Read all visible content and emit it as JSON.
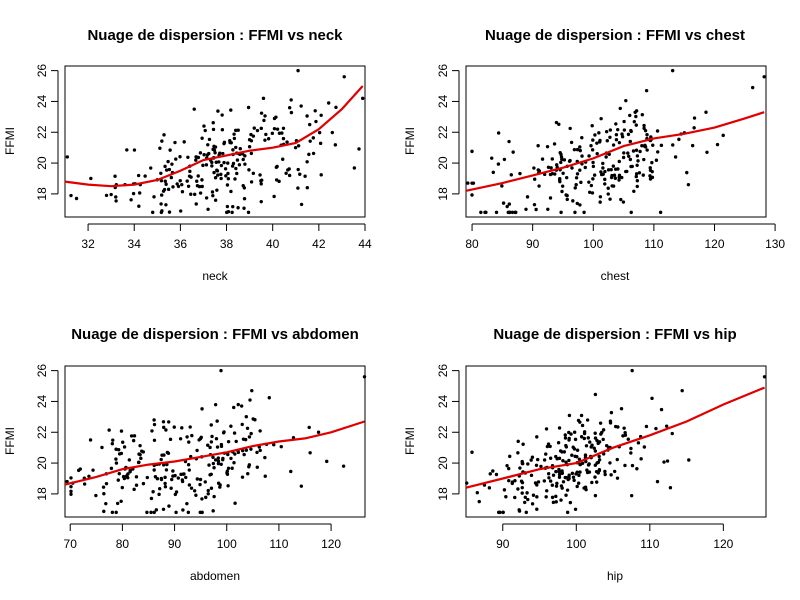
{
  "colors": {
    "points": "#000000",
    "smoother": "#e00000",
    "background": "#ffffff"
  },
  "chart_data": [
    {
      "type": "scatter",
      "title": "Nuage de dispersion : FFMI vs neck",
      "xlabel": "neck",
      "ylabel": "FFMI",
      "xlim": [
        31,
        44
      ],
      "ylim": [
        16.5,
        26.3
      ],
      "xticks": [
        32,
        34,
        36,
        38,
        40,
        42,
        44
      ],
      "yticks": [
        18,
        20,
        22,
        24,
        26
      ],
      "x_center": 37.9,
      "x_spread": 2.3,
      "y_slope": 0.34,
      "y_noise": 1.45,
      "points": [
        [
          31.1,
          20.4
        ],
        [
          31.5,
          17.7
        ],
        [
          32.8,
          17.9
        ],
        [
          33.2,
          17.8
        ],
        [
          33.6,
          18.6
        ],
        [
          34.2,
          17.2
        ],
        [
          34.8,
          16.8
        ],
        [
          35.2,
          16.9
        ],
        [
          41.1,
          26.0
        ],
        [
          43.1,
          25.6
        ],
        [
          43.9,
          24.2
        ],
        [
          39.6,
          24.2
        ],
        [
          42.1,
          23.1
        ],
        [
          41.5,
          18.4
        ],
        [
          37.2,
          17.0
        ],
        [
          38.5,
          17.1
        ],
        [
          36.6,
          23.5
        ],
        [
          40.8,
          24.1
        ]
      ],
      "smoother": {
        "name": "",
        "x": [
          31.0,
          32.0,
          33.0,
          34.0,
          35.0,
          36.0,
          37.0,
          38.0,
          39.0,
          40.0,
          41.0,
          42.0,
          43.0,
          43.9
        ],
        "y": [
          18.8,
          18.6,
          18.5,
          18.6,
          18.9,
          19.5,
          20.2,
          20.5,
          20.8,
          21.0,
          21.3,
          22.2,
          23.5,
          25.0
        ]
      }
    },
    {
      "type": "scatter",
      "title": "Nuage de dispersion : FFMI vs chest",
      "xlabel": "chest",
      "ylabel": "FFMI",
      "xlim": [
        79,
        128.5
      ],
      "ylim": [
        16.5,
        26.3
      ],
      "xticks": [
        80,
        90,
        100,
        110,
        120,
        130
      ],
      "yticks": [
        18,
        20,
        22,
        24,
        26
      ],
      "x_center": 100.5,
      "x_spread": 8.5,
      "y_slope": 0.09,
      "y_noise": 1.5,
      "points": [
        [
          79.3,
          18.7
        ],
        [
          83.5,
          19.4
        ],
        [
          85.2,
          17.4
        ],
        [
          88.9,
          17.0
        ],
        [
          113.1,
          26.0
        ],
        [
          128.2,
          25.6
        ],
        [
          120.5,
          21.2
        ],
        [
          115.7,
          18.6
        ],
        [
          118.6,
          23.3
        ],
        [
          108.8,
          24.7
        ],
        [
          90.3,
          17.3
        ],
        [
          92.5,
          17.0
        ]
      ],
      "smoother": {
        "name": "",
        "x": [
          79.0,
          85.0,
          90.0,
          95.0,
          100.0,
          105.0,
          110.0,
          115.0,
          120.0,
          125.0,
          128.2
        ],
        "y": [
          18.2,
          18.7,
          19.2,
          19.7,
          20.3,
          21.1,
          21.6,
          21.9,
          22.3,
          22.9,
          23.3
        ]
      }
    },
    {
      "type": "scatter",
      "title": "Nuage de dispersion : FFMI vs abdomen",
      "xlabel": "abdomen",
      "ylabel": "FFMI",
      "xlim": [
        69,
        126.5
      ],
      "ylim": [
        16.5,
        26.3
      ],
      "xticks": [
        70,
        80,
        90,
        100,
        110,
        120
      ],
      "yticks": [
        18,
        20,
        22,
        24,
        26
      ],
      "x_center": 92.5,
      "x_spread": 10.5,
      "y_slope": 0.06,
      "y_noise": 1.6,
      "points": [
        [
          69.4,
          18.8
        ],
        [
          70.5,
          18.7
        ],
        [
          98.9,
          26.0
        ],
        [
          126.4,
          25.6
        ],
        [
          122.4,
          19.8
        ],
        [
          114.3,
          18.5
        ],
        [
          104.8,
          24.7
        ],
        [
          84.7,
          16.8
        ],
        [
          86.1,
          16.8
        ],
        [
          97.4,
          16.9
        ],
        [
          73.9,
          21.5
        ],
        [
          117.6,
          22.0
        ]
      ],
      "smoother": {
        "name": "",
        "x": [
          69.0,
          75.0,
          80.0,
          85.0,
          90.0,
          95.0,
          100.0,
          105.0,
          110.0,
          115.0,
          120.0,
          126.4
        ],
        "y": [
          18.6,
          19.1,
          19.6,
          19.9,
          20.1,
          20.4,
          20.7,
          21.1,
          21.4,
          21.6,
          22.0,
          22.7
        ]
      }
    },
    {
      "type": "scatter",
      "title": "Nuage de dispersion : FFMI vs hip",
      "xlabel": "hip",
      "ylabel": "FFMI",
      "xlim": [
        85,
        125.8
      ],
      "ylim": [
        16.5,
        26.3
      ],
      "xticks": [
        90,
        100,
        110,
        120
      ],
      "yticks": [
        18,
        20,
        22,
        24,
        26
      ],
      "x_center": 99.5,
      "x_spread": 5.5,
      "y_slope": 0.16,
      "y_noise": 1.45,
      "points": [
        [
          85.1,
          18.7
        ],
        [
          88.3,
          19.3
        ],
        [
          107.6,
          26.0
        ],
        [
          125.6,
          25.6
        ],
        [
          114.4,
          24.7
        ],
        [
          112.8,
          18.4
        ],
        [
          89.6,
          16.8
        ],
        [
          93.2,
          16.8
        ],
        [
          99.9,
          17.0
        ],
        [
          86.8,
          17.5
        ],
        [
          115.3,
          20.2
        ],
        [
          110.3,
          24.2
        ]
      ],
      "smoother": {
        "name": "",
        "x": [
          85.0,
          90.0,
          95.0,
          100.0,
          105.0,
          110.0,
          115.0,
          120.0,
          125.6
        ],
        "y": [
          18.4,
          19.0,
          19.6,
          20.0,
          21.0,
          21.8,
          22.7,
          23.8,
          24.9
        ]
      }
    }
  ]
}
